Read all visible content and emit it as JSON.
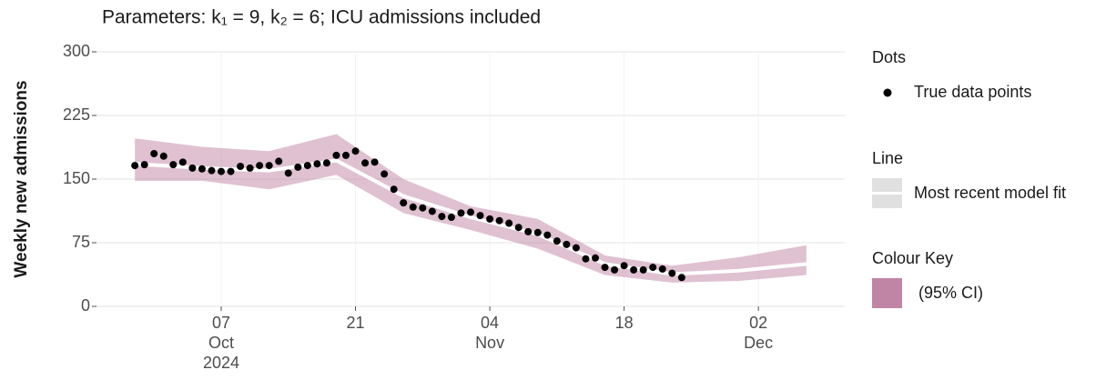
{
  "chart_data": {
    "type": "line",
    "title": "Parameters: k₁ = 9, k₂ = 6; ICU admissions included",
    "y_label": "Weekly new admissions",
    "xlim": [
      "2024-09-24",
      "2024-12-11"
    ],
    "xticks": [
      {
        "value": "2024-10-07",
        "label": [
          "07",
          "Oct",
          "2024"
        ]
      },
      {
        "value": "2024-10-21",
        "label": [
          "21"
        ]
      },
      {
        "value": "2024-11-04",
        "label": [
          "04",
          "Nov"
        ]
      },
      {
        "value": "2024-11-18",
        "label": [
          "18"
        ]
      },
      {
        "value": "2024-12-02",
        "label": [
          "02",
          "Dec"
        ]
      }
    ],
    "ylim": [
      0,
      300
    ],
    "yticks": [
      0,
      75,
      150,
      225,
      300
    ],
    "grid": true,
    "series": [
      {
        "name": "True data points",
        "legend_title": "Dots",
        "mark": "dot",
        "color": "#000000",
        "x": [
          "2024-09-28",
          "2024-09-29",
          "2024-09-30",
          "2024-10-01",
          "2024-10-02",
          "2024-10-03",
          "2024-10-04",
          "2024-10-05",
          "2024-10-06",
          "2024-10-07",
          "2024-10-08",
          "2024-10-09",
          "2024-10-10",
          "2024-10-11",
          "2024-10-12",
          "2024-10-13",
          "2024-10-14",
          "2024-10-15",
          "2024-10-16",
          "2024-10-17",
          "2024-10-18",
          "2024-10-19",
          "2024-10-20",
          "2024-10-21",
          "2024-10-22",
          "2024-10-23",
          "2024-10-24",
          "2024-10-25",
          "2024-10-26",
          "2024-10-27",
          "2024-10-28",
          "2024-10-29",
          "2024-10-30",
          "2024-10-31",
          "2024-11-01",
          "2024-11-02",
          "2024-11-03",
          "2024-11-04",
          "2024-11-05",
          "2024-11-06",
          "2024-11-07",
          "2024-11-08",
          "2024-11-09",
          "2024-11-10",
          "2024-11-11",
          "2024-11-12",
          "2024-11-13",
          "2024-11-14",
          "2024-11-15",
          "2024-11-16",
          "2024-11-17",
          "2024-11-18",
          "2024-11-19",
          "2024-11-20",
          "2024-11-21",
          "2024-11-22",
          "2024-11-23",
          "2024-11-24"
        ],
        "values": [
          166,
          167,
          180,
          177,
          167,
          170,
          163,
          162,
          160,
          159,
          159,
          165,
          163,
          166,
          166,
          171,
          157,
          164,
          166,
          168,
          169,
          178,
          178,
          183,
          169,
          170,
          156,
          138,
          122,
          117,
          116,
          112,
          106,
          105,
          110,
          111,
          107,
          103,
          101,
          98,
          93,
          88,
          87,
          84,
          77,
          73,
          69,
          56,
          57,
          46,
          43,
          48,
          43,
          43,
          46,
          44,
          39,
          34
        ]
      },
      {
        "name": "Most recent model fit",
        "legend_title": "Line",
        "mark": "line",
        "color": "#ffffff",
        "x": [
          "2024-09-28",
          "2024-10-05",
          "2024-10-12",
          "2024-10-19",
          "2024-10-26",
          "2024-11-02",
          "2024-11-09",
          "2024-11-16",
          "2024-11-23",
          "2024-11-30",
          "2024-12-07"
        ],
        "values": [
          168,
          163,
          160,
          172,
          130,
          105,
          85,
          50,
          38,
          42,
          50
        ]
      }
    ],
    "ribbon": {
      "name": "(95% CI)",
      "legend_title": "Colour Key",
      "color": "#c084a5",
      "x": [
        "2024-09-28",
        "2024-10-05",
        "2024-10-12",
        "2024-10-19",
        "2024-10-26",
        "2024-11-02",
        "2024-11-09",
        "2024-11-16",
        "2024-11-23",
        "2024-11-30",
        "2024-12-07"
      ],
      "lower": [
        148,
        148,
        138,
        155,
        110,
        90,
        68,
        37,
        28,
        30,
        37
      ],
      "upper": [
        198,
        188,
        183,
        203,
        150,
        118,
        103,
        60,
        48,
        58,
        72
      ]
    }
  }
}
